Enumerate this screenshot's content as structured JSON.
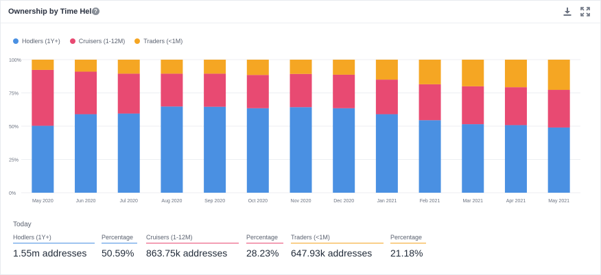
{
  "header": {
    "title": "Ownership by Time Held",
    "help_glyph": "?"
  },
  "colors": {
    "hodlers": "#4a90e2",
    "cruisers": "#e84a72",
    "traders": "#f5a623",
    "axis_text": "#6b7280",
    "grid": "#eceef2"
  },
  "legend": [
    {
      "name": "Hodlers (1Y+)",
      "color": "#4a90e2"
    },
    {
      "name": "Cruisers (1-12M)",
      "color": "#e84a72"
    },
    {
      "name": "Traders (<1M)",
      "color": "#f5a623"
    }
  ],
  "chart_data": {
    "type": "bar",
    "stacked": true,
    "categories": [
      "May 2020",
      "Jun 2020",
      "Jul 2020",
      "Aug 2020",
      "Sep 2020",
      "Oct 2020",
      "Nov 2020",
      "Dec 2020",
      "Jan 2021",
      "Feb 2021",
      "Mar 2021",
      "Apr 2021",
      "May 2021"
    ],
    "series": [
      {
        "name": "Hodlers (1Y+)",
        "values": [
          50.3,
          59.0,
          59.5,
          64.8,
          64.6,
          63.5,
          64.3,
          63.5,
          59.0,
          54.5,
          51.5,
          50.8,
          49.0
        ]
      },
      {
        "name": "Cruisers (1-12M)",
        "values": [
          42.0,
          32.0,
          30.0,
          24.7,
          24.9,
          25.0,
          25.0,
          25.2,
          26.0,
          27.0,
          28.5,
          28.5,
          28.3
        ]
      },
      {
        "name": "Traders (<1M)",
        "values": [
          7.7,
          9.0,
          10.5,
          10.5,
          10.5,
          11.5,
          10.7,
          11.3,
          15.0,
          18.5,
          20.0,
          20.7,
          22.7
        ]
      }
    ],
    "y_ticks": [
      "100%",
      "75%",
      "50%",
      "25%",
      "0%"
    ],
    "ylim": [
      0,
      100
    ],
    "grid": true,
    "legend_position": "top-left"
  },
  "summary": {
    "today_label": "Today",
    "metrics": [
      {
        "label": "Hodlers (1Y+)",
        "value": "1.55m addresses",
        "color": "#4a90e2"
      },
      {
        "label": "Percentage",
        "value": "50.59%",
        "color": "#4a90e2"
      },
      {
        "label": "Cruisers (1-12M)",
        "value": "863.75k addresses",
        "color": "#e84a72"
      },
      {
        "label": "Percentage",
        "value": "28.23%",
        "color": "#e84a72"
      },
      {
        "label": "Traders (<1M)",
        "value": "647.93k addresses",
        "color": "#f5a623"
      },
      {
        "label": "Percentage",
        "value": "21.18%",
        "color": "#f5a623"
      }
    ]
  }
}
